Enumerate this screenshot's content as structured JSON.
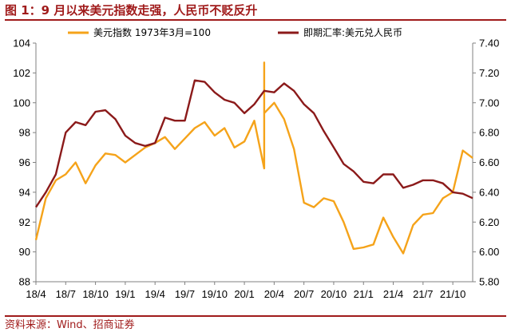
{
  "header": {
    "title": "图 1：9 月以来美元指数走强，人民币不贬反升"
  },
  "footer": {
    "source": "资料来源：Wind、招商证券"
  },
  "chart_data": {
    "type": "line",
    "x_tick_labels": [
      "18/4",
      "18/7",
      "18/10",
      "19/1",
      "19/4",
      "19/7",
      "19/10",
      "20/1",
      "20/4",
      "20/7",
      "20/10",
      "21/1",
      "21/4",
      "21/7",
      "21/10"
    ],
    "x_range": [
      "2018-04",
      "2021-12"
    ],
    "left_axis": {
      "ylim": [
        88,
        104
      ],
      "ticks": [
        "88",
        "90",
        "92",
        "94",
        "96",
        "98",
        "100",
        "102",
        "104"
      ]
    },
    "right_axis": {
      "ylim": [
        5.8,
        7.4
      ],
      "ticks": [
        "5.80",
        "6.00",
        "6.20",
        "6.40",
        "6.60",
        "6.80",
        "7.00",
        "7.20",
        "7.40"
      ]
    },
    "grid": false,
    "legend_position": "top",
    "series": [
      {
        "name": "美元指数  1973年3月=100",
        "axis": "left",
        "color": "#f5a31a",
        "x": [
          "2018-04",
          "2018-05",
          "2018-06",
          "2018-07",
          "2018-08",
          "2018-09",
          "2018-10",
          "2018-11",
          "2018-12",
          "2019-01",
          "2019-02",
          "2019-03",
          "2019-04",
          "2019-05",
          "2019-06",
          "2019-07",
          "2019-08",
          "2019-09",
          "2019-10",
          "2019-11",
          "2019-12",
          "2020-01",
          "2020-02",
          "2020-03",
          "2020-03",
          "2020-03",
          "2020-04",
          "2020-05",
          "2020-06",
          "2020-07",
          "2020-08",
          "2020-09",
          "2020-10",
          "2020-11",
          "2020-12",
          "2021-01",
          "2021-02",
          "2021-03",
          "2021-04",
          "2021-05",
          "2021-06",
          "2021-07",
          "2021-08",
          "2021-09",
          "2021-10",
          "2021-11",
          "2021-12"
        ],
        "values": [
          90.8,
          93.6,
          94.8,
          95.2,
          96.0,
          94.6,
          95.8,
          96.6,
          96.5,
          96.0,
          96.5,
          97.0,
          97.3,
          97.7,
          96.9,
          97.6,
          98.3,
          98.7,
          97.8,
          98.3,
          97.0,
          97.4,
          98.8,
          95.6,
          102.7,
          99.3,
          100.0,
          98.9,
          96.9,
          93.3,
          93.0,
          93.6,
          93.4,
          92.0,
          90.2,
          90.3,
          90.5,
          92.3,
          91.0,
          89.9,
          91.8,
          92.5,
          92.6,
          93.6,
          94.0,
          96.8,
          96.3
        ]
      },
      {
        "name": "即期汇率:美元兑人民币",
        "axis": "right",
        "color": "#8b1a1a",
        "x": [
          "2018-04",
          "2018-05",
          "2018-06",
          "2018-07",
          "2018-08",
          "2018-09",
          "2018-10",
          "2018-11",
          "2018-12",
          "2019-01",
          "2019-02",
          "2019-03",
          "2019-04",
          "2019-05",
          "2019-06",
          "2019-07",
          "2019-08",
          "2019-09",
          "2019-10",
          "2019-11",
          "2019-12",
          "2020-01",
          "2020-02",
          "2020-03",
          "2020-04",
          "2020-05",
          "2020-06",
          "2020-07",
          "2020-08",
          "2020-09",
          "2020-10",
          "2020-11",
          "2020-12",
          "2021-01",
          "2021-02",
          "2021-03",
          "2021-04",
          "2021-05",
          "2021-06",
          "2021-07",
          "2021-08",
          "2021-09",
          "2021-10",
          "2021-11",
          "2021-12"
        ],
        "values": [
          6.3,
          6.4,
          6.52,
          6.8,
          6.87,
          6.85,
          6.94,
          6.95,
          6.89,
          6.78,
          6.73,
          6.71,
          6.73,
          6.9,
          6.88,
          6.88,
          7.15,
          7.14,
          7.07,
          7.02,
          7.0,
          6.93,
          6.99,
          7.08,
          7.07,
          7.13,
          7.08,
          6.99,
          6.93,
          6.81,
          6.7,
          6.59,
          6.54,
          6.47,
          6.46,
          6.52,
          6.52,
          6.43,
          6.45,
          6.48,
          6.48,
          6.46,
          6.4,
          6.39,
          6.36
        ]
      }
    ]
  }
}
